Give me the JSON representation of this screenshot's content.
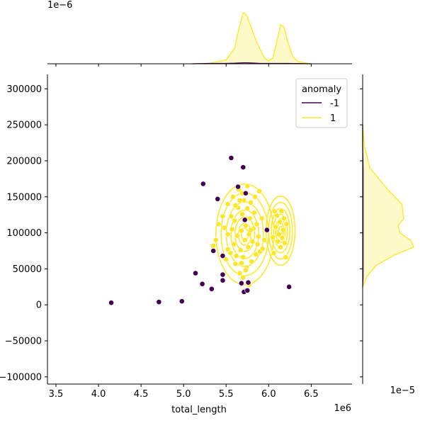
{
  "chart_data": [
    {
      "panel": "joint",
      "type": "scatter",
      "xlabel": "total_length",
      "ylabel": "",
      "x_offset_text": "1e6",
      "y_offset_text": "",
      "xlim": [
        3.4,
        6.98
      ],
      "ylim": [
        -110000,
        320000
      ],
      "x_ticks": [
        3.5,
        4.0,
        4.5,
        5.0,
        5.5,
        6.0,
        6.5
      ],
      "x_tick_labels": [
        "3.5",
        "4.0",
        "4.5",
        "5.0",
        "5.5",
        "6.0",
        "6.5"
      ],
      "y_ticks": [
        -100000,
        -50000,
        0,
        50000,
        100000,
        150000,
        200000,
        250000,
        300000
      ],
      "y_tick_labels": [
        "−100000",
        "−50000",
        "0",
        "50000",
        "100000",
        "150000",
        "200000",
        "250000",
        "300000"
      ],
      "legend": {
        "title": "anomaly",
        "location": "top-right",
        "entries": [
          {
            "label": "-1",
            "color": "#440154"
          },
          {
            "label": "1",
            "color": "#fde725"
          }
        ]
      },
      "series": [
        {
          "name": "-1",
          "color": "#440154",
          "points": [
            [
              4.15,
              3000
            ],
            [
              4.71,
              4000
            ],
            [
              4.98,
              5000
            ],
            [
              5.14,
              44000
            ],
            [
              5.22,
              29000
            ],
            [
              5.23,
              168000
            ],
            [
              5.33,
              22000
            ],
            [
              5.35,
              75000
            ],
            [
              5.4,
              147000
            ],
            [
              5.46,
              34000
            ],
            [
              5.46,
              42000
            ],
            [
              5.46,
              68000
            ],
            [
              5.56,
              204000
            ],
            [
              5.64,
              164000
            ],
            [
              5.68,
              30000
            ],
            [
              5.7,
              191000
            ],
            [
              5.71,
              18000
            ],
            [
              5.72,
              118000
            ],
            [
              5.73,
              155000
            ],
            [
              5.75,
              20000
            ],
            [
              5.76,
              31000
            ],
            [
              5.98,
              104000
            ],
            [
              6.24,
              25000
            ]
          ]
        },
        {
          "name": "1",
          "color": "#fde725",
          "points": [
            [
              5.35,
              82000
            ],
            [
              5.38,
              90000
            ],
            [
              5.41,
              112000
            ],
            [
              5.46,
              123000
            ],
            [
              5.5,
              63000
            ],
            [
              5.52,
              98000
            ],
            [
              5.52,
              140000
            ],
            [
              5.55,
              72000
            ],
            [
              5.57,
              105000
            ],
            [
              5.58,
              150000
            ],
            [
              5.59,
              84000
            ],
            [
              5.6,
              117000
            ],
            [
              5.61,
              57000
            ],
            [
              5.63,
              96000
            ],
            [
              5.64,
              135000
            ],
            [
              5.65,
              160000
            ],
            [
              5.66,
              44000
            ],
            [
              5.67,
              76000
            ],
            [
              5.68,
              103000
            ],
            [
              5.69,
              126000
            ],
            [
              5.7,
              66000
            ],
            [
              5.71,
              145000
            ],
            [
              5.72,
              90000
            ],
            [
              5.73,
              110000
            ],
            [
              5.74,
              52000
            ],
            [
              5.75,
              134000
            ],
            [
              5.76,
              80000
            ],
            [
              5.77,
              98000
            ],
            [
              5.78,
              120000
            ],
            [
              5.79,
              142000
            ],
            [
              5.8,
              60000
            ],
            [
              5.81,
              88000
            ],
            [
              5.82,
              106000
            ],
            [
              5.83,
              128000
            ],
            [
              5.84,
              150000
            ],
            [
              5.85,
              70000
            ],
            [
              5.86,
              112000
            ],
            [
              5.87,
              84000
            ],
            [
              5.88,
              95000
            ],
            [
              5.9,
              74000
            ],
            [
              5.92,
              120000
            ],
            [
              5.66,
              145000
            ],
            [
              5.69,
              155000
            ],
            [
              5.75,
              165000
            ],
            [
              5.79,
              104000
            ],
            [
              5.62,
              68000
            ],
            [
              5.7,
              38000
            ],
            [
              5.73,
              48000
            ],
            [
              5.56,
              123000
            ],
            [
              5.61,
              138000
            ],
            [
              5.89,
              158000
            ],
            [
              5.93,
              78000
            ],
            [
              5.95,
              90000
            ],
            [
              5.77,
              28000
            ],
            [
              5.68,
              58000
            ],
            [
              5.52,
              77000
            ],
            [
              5.48,
              107000
            ],
            [
              6.06,
              72000
            ],
            [
              6.08,
              108000
            ],
            [
              6.1,
              124000
            ],
            [
              6.11,
              88000
            ],
            [
              6.12,
              98000
            ],
            [
              6.13,
              115000
            ],
            [
              6.14,
              80000
            ],
            [
              6.15,
              130000
            ],
            [
              6.16,
              93000
            ],
            [
              6.17,
              104000
            ],
            [
              6.18,
              120000
            ],
            [
              6.2,
              66000
            ],
            [
              6.21,
              112000
            ],
            [
              6.05,
              94000
            ],
            [
              6.07,
              130000
            ],
            [
              6.19,
              86000
            ]
          ]
        }
      ]
    },
    {
      "panel": "marginal-x",
      "type": "area",
      "offset_text": "1e−6",
      "x": [
        5.1,
        5.3,
        5.5,
        5.6,
        5.65,
        5.7,
        5.72,
        5.75,
        5.8,
        5.85,
        5.9,
        5.95,
        6.0,
        6.05,
        6.1,
        6.14,
        6.18,
        6.22,
        6.28,
        6.35,
        6.5
      ],
      "series": [
        {
          "name": "1",
          "color": "#fde725",
          "values": [
            0.0,
            0.02,
            0.2,
            0.8,
            1.8,
            2.62,
            2.6,
            2.4,
            1.8,
            1.2,
            0.75,
            0.3,
            0.15,
            0.3,
            1.2,
            2.0,
            1.9,
            1.2,
            0.4,
            0.1,
            0.0
          ]
        },
        {
          "name": "-1",
          "color": "#440154",
          "values": [
            0.0,
            0.02,
            0.02,
            0.03,
            0.04,
            0.05,
            0.05,
            0.05,
            0.04,
            0.03,
            0.02,
            0.02,
            0.02,
            0.02,
            0.02,
            0.02,
            0.02,
            0.02,
            0.01,
            0.01,
            0.0
          ]
        }
      ]
    },
    {
      "panel": "marginal-y",
      "type": "area",
      "offset_text": "1e−5",
      "y": [
        250000,
        220000,
        190000,
        160000,
        140000,
        120000,
        110000,
        100000,
        90000,
        80000,
        70000,
        55000,
        40000,
        25000
      ],
      "series": [
        {
          "name": "1",
          "color": "#fde725",
          "values": [
            0.0,
            0.04,
            0.16,
            0.55,
            0.86,
            0.9,
            0.78,
            0.82,
            1.05,
            1.12,
            0.72,
            0.3,
            0.1,
            0.0
          ]
        },
        {
          "name": "-1",
          "color": "#440154",
          "values": [
            0.0,
            0.0,
            0.01,
            0.01,
            0.01,
            0.01,
            0.01,
            0.01,
            0.01,
            0.01,
            0.01,
            0.01,
            0.01,
            0.0
          ]
        }
      ]
    }
  ]
}
